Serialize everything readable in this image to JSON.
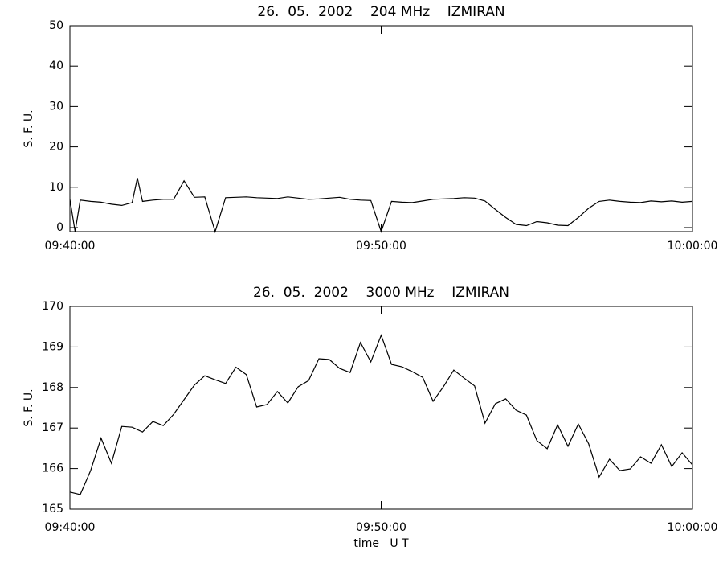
{
  "chart_data": [
    {
      "type": "line",
      "title": "26.  05.  2002    204 MHz    IZMIRAN",
      "y_label": "S. F. U.",
      "x": [
        "09:40:00",
        "09:40:10",
        "09:40:20",
        "09:40:40",
        "09:41:00",
        "09:41:20",
        "09:41:40",
        "09:42:00",
        "09:42:10",
        "09:42:20",
        "09:42:40",
        "09:43:00",
        "09:43:20",
        "09:43:40",
        "09:44:00",
        "09:44:20",
        "09:44:40",
        "09:45:00",
        "09:45:20",
        "09:45:40",
        "09:46:00",
        "09:46:20",
        "09:46:40",
        "09:47:00",
        "09:47:20",
        "09:47:40",
        "09:48:00",
        "09:48:20",
        "09:48:40",
        "09:49:00",
        "09:49:20",
        "09:49:40",
        "09:50:00",
        "09:50:20",
        "09:50:40",
        "09:51:00",
        "09:51:20",
        "09:51:40",
        "09:52:00",
        "09:52:20",
        "09:52:40",
        "09:53:00",
        "09:53:20",
        "09:53:40",
        "09:54:00",
        "09:54:20",
        "09:54:40",
        "09:55:00",
        "09:55:20",
        "09:55:40",
        "09:56:00",
        "09:56:20",
        "09:56:40",
        "09:57:00",
        "09:57:20",
        "09:57:40",
        "09:58:00",
        "09:58:20",
        "09:58:40",
        "09:59:00",
        "09:59:20",
        "09:59:40",
        "10:00:00"
      ],
      "series": [
        {
          "name": "204 MHz",
          "color": "#000000",
          "values": [
            7,
            -1,
            6.8,
            6.5,
            6.3,
            5.8,
            5.5,
            6.2,
            12.3,
            6.5,
            6.8,
            7,
            7,
            11.6,
            7.5,
            7.6,
            -1,
            7.4,
            7.5,
            7.6,
            7.4,
            7.3,
            7.2,
            7.6,
            7.3,
            7.0,
            7.1,
            7.3,
            7.5,
            7.0,
            6.8,
            6.7,
            -1,
            6.5,
            6.3,
            6.2,
            6.6,
            7.0,
            7.1,
            7.2,
            7.4,
            7.3,
            6.6,
            4.5,
            2.5,
            0.8,
            0.5,
            1.5,
            1.2,
            0.6,
            0.5,
            2.5,
            4.8,
            6.5,
            6.8,
            6.5,
            6.3,
            6.2,
            6.6,
            6.4,
            6.6,
            6.3,
            6.5
          ]
        }
      ],
      "xlim": [
        "09:40:00",
        "10:00:00"
      ],
      "xticks": [
        "09:40:00",
        "09:50:00",
        "10:00:00"
      ],
      "ylim": [
        -1,
        50
      ],
      "yticks": [
        0,
        10,
        20,
        30,
        40,
        50
      ]
    },
    {
      "type": "line",
      "title": "26.  05.  2002    3000 MHz    IZMIRAN",
      "y_label": "S. F. U.",
      "x_label": "time   U T",
      "x": [
        "09:40:00",
        "09:40:20",
        "09:40:40",
        "09:41:00",
        "09:41:20",
        "09:41:40",
        "09:42:00",
        "09:42:20",
        "09:42:40",
        "09:43:00",
        "09:43:20",
        "09:43:40",
        "09:44:00",
        "09:44:20",
        "09:44:40",
        "09:45:00",
        "09:45:20",
        "09:45:40",
        "09:46:00",
        "09:46:20",
        "09:46:40",
        "09:47:00",
        "09:47:20",
        "09:47:40",
        "09:48:00",
        "09:48:20",
        "09:48:40",
        "09:49:00",
        "09:49:20",
        "09:49:40",
        "09:50:00",
        "09:50:20",
        "09:50:40",
        "09:51:00",
        "09:51:20",
        "09:51:40",
        "09:52:00",
        "09:52:20",
        "09:52:40",
        "09:53:00",
        "09:53:20",
        "09:53:40",
        "09:54:00",
        "09:54:20",
        "09:54:40",
        "09:55:00",
        "09:55:20",
        "09:55:40",
        "09:56:00",
        "09:56:20",
        "09:56:40",
        "09:57:00",
        "09:57:20",
        "09:57:40",
        "09:58:00",
        "09:58:20",
        "09:58:40",
        "09:59:00",
        "09:59:20",
        "09:59:40",
        "10:00:00"
      ],
      "series": [
        {
          "name": "3000 MHz",
          "color": "#000000",
          "values": [
            165.42,
            165.36,
            165.95,
            166.75,
            166.13,
            167.04,
            167.02,
            166.9,
            167.16,
            167.06,
            167.34,
            167.7,
            168.06,
            168.29,
            168.19,
            168.1,
            168.5,
            168.32,
            167.52,
            167.58,
            167.9,
            167.62,
            168.02,
            168.17,
            168.71,
            168.69,
            168.47,
            168.37,
            169.11,
            168.63,
            169.29,
            168.57,
            168.51,
            168.39,
            168.25,
            167.66,
            168.02,
            168.43,
            168.23,
            168.04,
            167.12,
            167.6,
            167.72,
            167.44,
            167.32,
            166.69,
            166.49,
            167.08,
            166.55,
            167.1,
            166.61,
            165.79,
            166.23,
            165.95,
            165.99,
            166.29,
            166.13,
            166.59,
            166.05,
            166.39,
            166.09
          ]
        }
      ],
      "xlim": [
        "09:40:00",
        "10:00:00"
      ],
      "xticks": [
        "09:40:00",
        "09:50:00",
        "10:00:00"
      ],
      "ylim": [
        165,
        170
      ],
      "yticks": [
        165,
        166,
        167,
        168,
        169,
        170
      ]
    }
  ]
}
